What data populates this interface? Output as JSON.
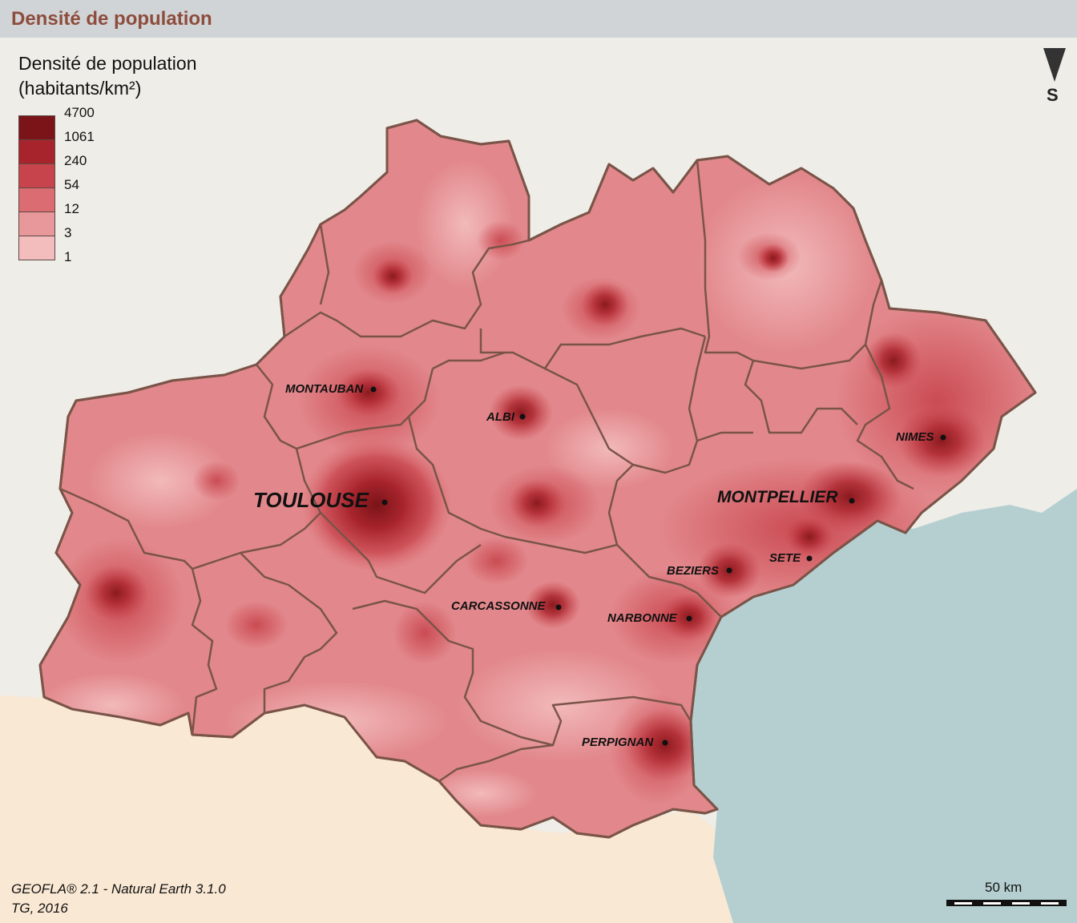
{
  "header": {
    "title": "Densité de population"
  },
  "legend": {
    "title_line1": "Densité de population",
    "title_line2": "(habitants/km²)",
    "classes": [
      {
        "value": "4700",
        "color": "#7a1418"
      },
      {
        "value": "1061",
        "color": "#a8242c"
      },
      {
        "value": "240",
        "color": "#c8444c"
      },
      {
        "value": "54",
        "color": "#da6c72"
      },
      {
        "value": "12",
        "color": "#e8979a"
      },
      {
        "value": "3",
        "color": "#f3bcbd"
      },
      {
        "value": "1",
        "color": ""
      }
    ]
  },
  "north_arrow": {
    "label": "S"
  },
  "cities": [
    {
      "name": "MONTAUBAN",
      "size": "small"
    },
    {
      "name": "ALBI",
      "size": "small"
    },
    {
      "name": "TOULOUSE",
      "size": "big"
    },
    {
      "name": "NIMES",
      "size": "small"
    },
    {
      "name": "MONTPELLIER",
      "size": "big"
    },
    {
      "name": "SETE",
      "size": "small"
    },
    {
      "name": "BEZIERS",
      "size": "small"
    },
    {
      "name": "CARCASSONNE",
      "size": "small"
    },
    {
      "name": "NARBONNE",
      "size": "small"
    },
    {
      "name": "PERPIGNAN",
      "size": "small"
    }
  ],
  "source": {
    "line1": "GEOFLA® 2.1 - Natural Earth 3.1.0",
    "line2": "TG, 2016"
  },
  "scale": {
    "label": "50 km"
  },
  "colors": {
    "land_other": "#efede7",
    "spain": "#f9e8d3",
    "sea": "#b5cfd1",
    "border": "#7a5448",
    "region_fill": "#e2888c"
  }
}
